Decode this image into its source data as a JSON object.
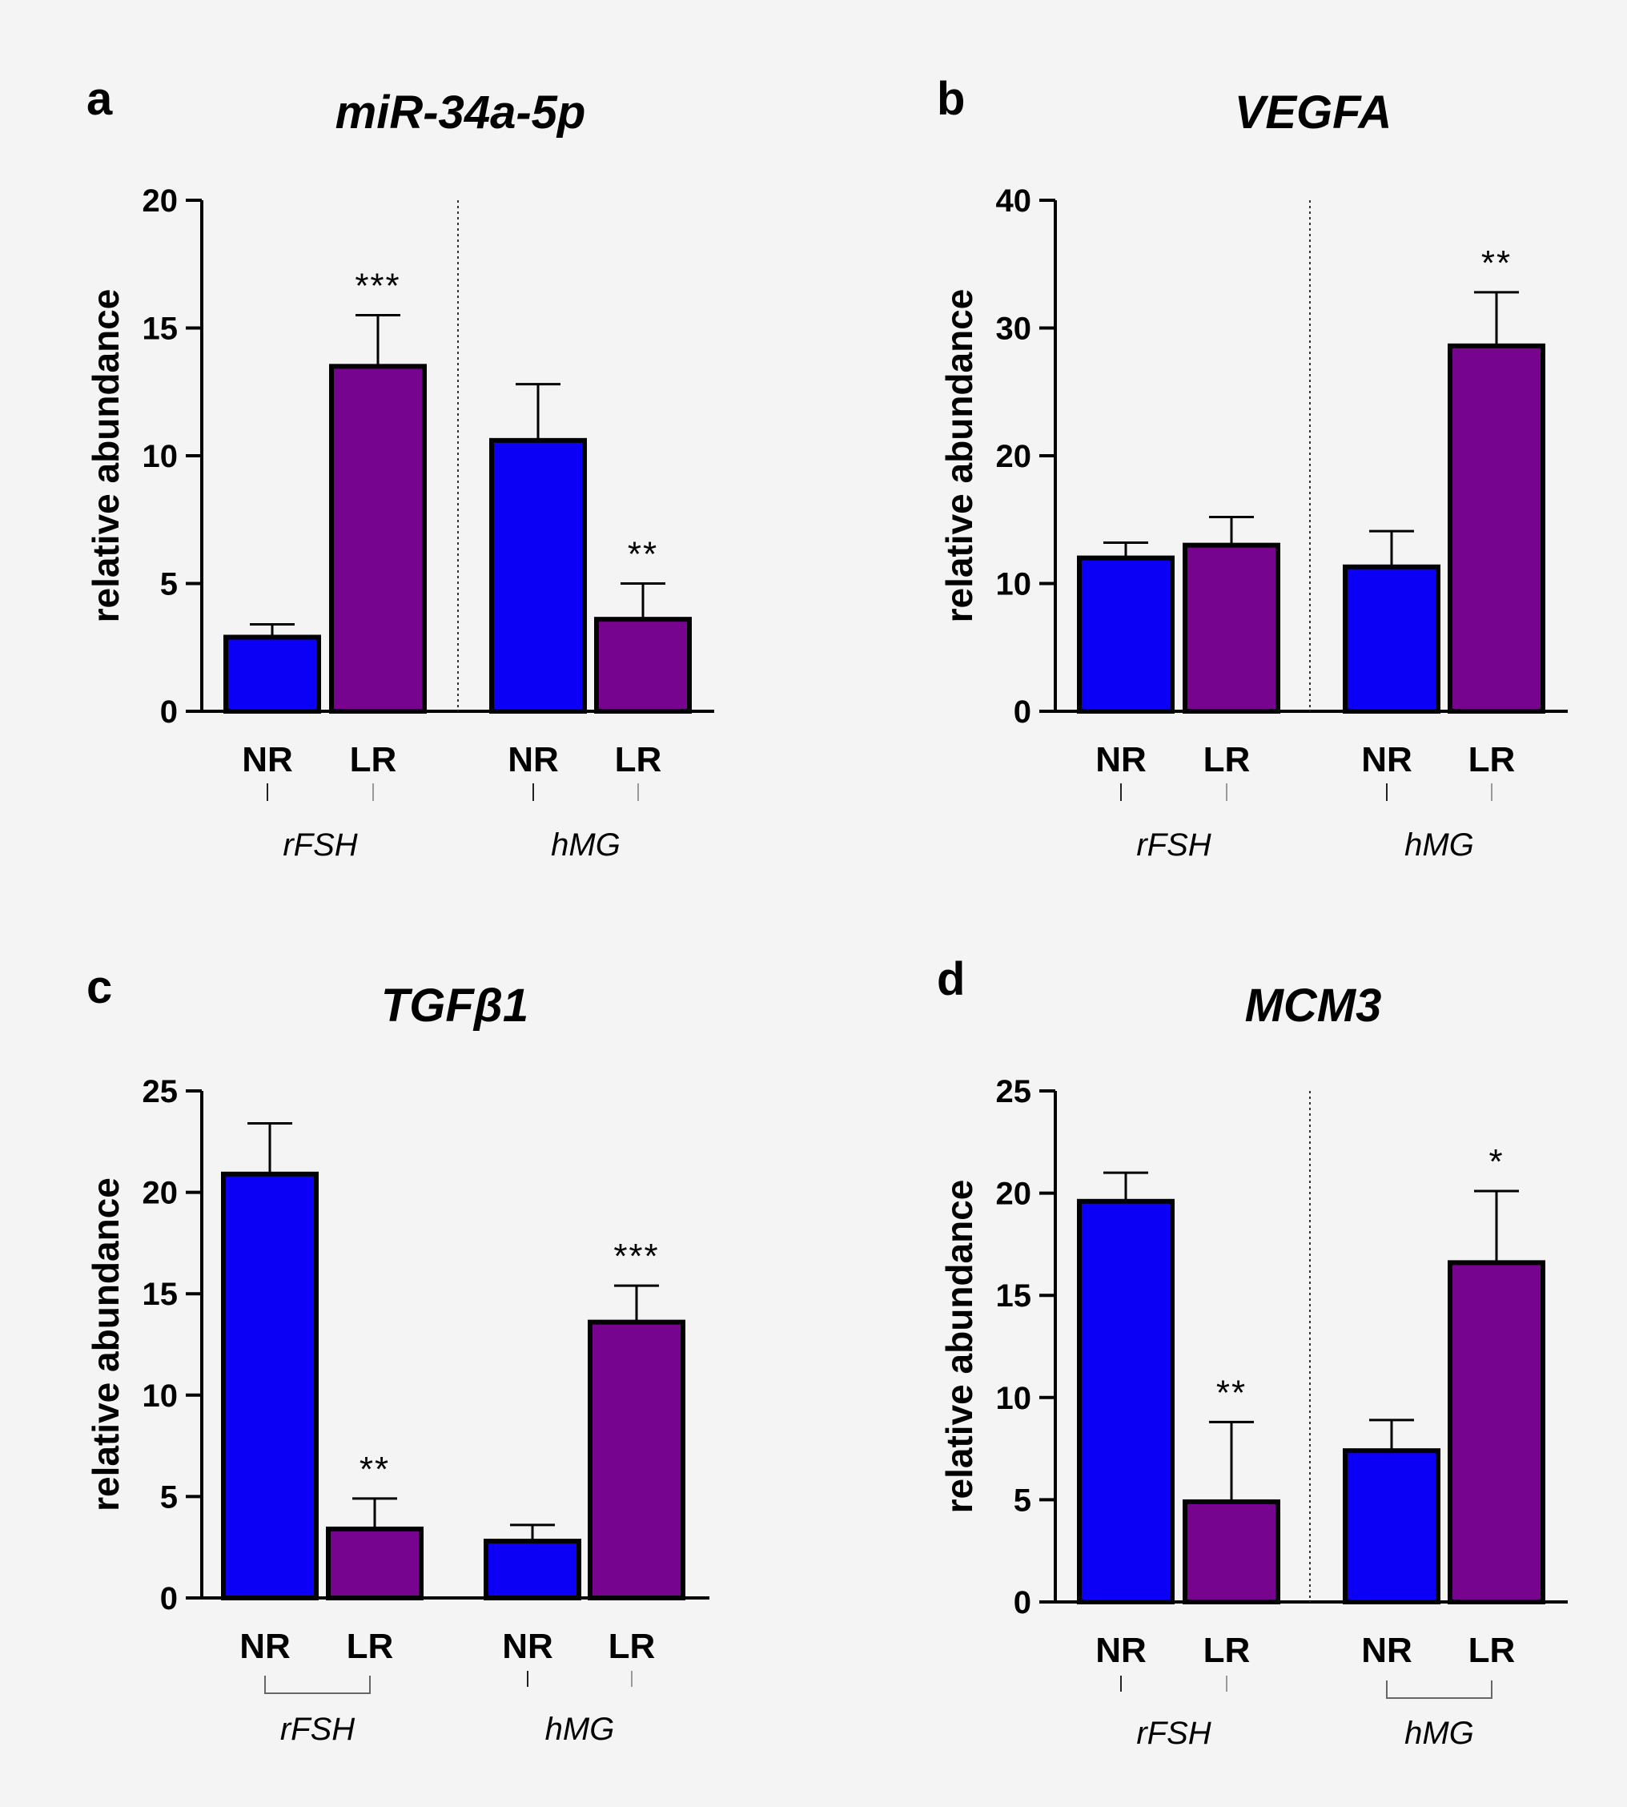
{
  "figure": {
    "panels": [
      "a",
      "b",
      "c",
      "d"
    ]
  },
  "colors": {
    "NR": "#0b00f5",
    "LR": "#76048f",
    "stroke": "#000000"
  },
  "chart_data": [
    {
      "type": "bar",
      "panel": "a",
      "title": "miR-34a-5p",
      "ylabel": "relative abundance",
      "ylim": [
        0,
        20
      ],
      "yticks": [
        "0",
        "5",
        "10",
        "15",
        "20"
      ],
      "categories": [
        "NR",
        "LR",
        "NR",
        "LR"
      ],
      "groups": [
        "rFSH",
        "rFSH",
        "hMG",
        "hMG"
      ],
      "group_labels": [
        "rFSH",
        "hMG"
      ],
      "values": [
        2.9,
        13.5,
        10.6,
        3.6
      ],
      "errors": [
        0.5,
        2.0,
        2.2,
        1.4
      ],
      "significance": [
        "",
        "***",
        "",
        "**"
      ],
      "divider": true,
      "group_bracket": [
        false,
        false
      ]
    },
    {
      "type": "bar",
      "panel": "b",
      "title": "VEGFA",
      "ylabel": "relative abundance",
      "ylim": [
        0,
        40
      ],
      "yticks": [
        "0",
        "10",
        "20",
        "30",
        "40"
      ],
      "categories": [
        "NR",
        "LR",
        "NR",
        "LR"
      ],
      "groups": [
        "rFSH",
        "rFSH",
        "hMG",
        "hMG"
      ],
      "group_labels": [
        "rFSH",
        "hMG"
      ],
      "values": [
        12.0,
        13.0,
        11.3,
        28.6
      ],
      "errors": [
        1.2,
        2.2,
        2.8,
        4.2
      ],
      "significance": [
        "",
        "",
        "",
        "**"
      ],
      "divider": true,
      "group_bracket": [
        false,
        false
      ]
    },
    {
      "type": "bar",
      "panel": "c",
      "title": "TGFβ1",
      "ylabel": "relative abundance",
      "ylim": [
        0,
        25
      ],
      "yticks": [
        "0",
        "5",
        "10",
        "15",
        "20",
        "25"
      ],
      "categories": [
        "NR",
        "LR",
        "NR",
        "LR"
      ],
      "groups": [
        "rFSH",
        "rFSH",
        "hMG",
        "hMG"
      ],
      "group_labels": [
        "rFSH",
        "hMG"
      ],
      "values": [
        20.9,
        3.4,
        2.8,
        13.6
      ],
      "errors": [
        2.5,
        1.5,
        0.8,
        1.8
      ],
      "significance": [
        "",
        "**",
        "",
        "***"
      ],
      "divider": false,
      "group_bracket": [
        true,
        false
      ]
    },
    {
      "type": "bar",
      "panel": "d",
      "title": "MCM3",
      "ylabel": "relative abundance",
      "ylim": [
        0,
        25
      ],
      "yticks": [
        "0",
        "5",
        "10",
        "15",
        "20",
        "25"
      ],
      "categories": [
        "NR",
        "LR",
        "NR",
        "LR"
      ],
      "groups": [
        "rFSH",
        "rFSH",
        "hMG",
        "hMG"
      ],
      "group_labels": [
        "rFSH",
        "hMG"
      ],
      "values": [
        19.6,
        4.9,
        7.4,
        16.6
      ],
      "errors": [
        1.4,
        3.9,
        1.5,
        3.5
      ],
      "significance": [
        "",
        "**",
        "",
        "*"
      ],
      "divider": true,
      "group_bracket": [
        false,
        true
      ]
    }
  ]
}
